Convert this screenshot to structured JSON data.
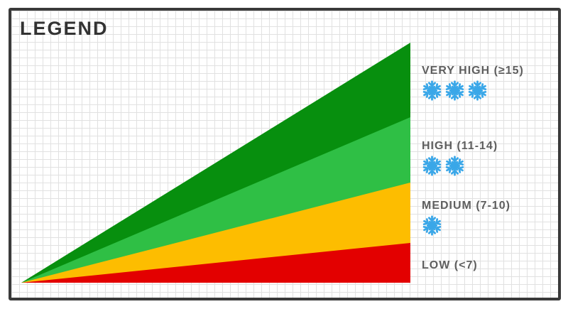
{
  "legend": {
    "title": "LEGEND",
    "levels": [
      {
        "label": "VERY HIGH (≥15)",
        "snowflakes": 3,
        "band_color": "#078f0e"
      },
      {
        "label": "HIGH (11-14)",
        "snowflakes": 2,
        "band_color": "#2fbf45"
      },
      {
        "label": "MEDIUM (7-10)",
        "snowflakes": 1,
        "band_color": "#fdbd00"
      },
      {
        "label": "LOW (<7)",
        "snowflakes": 0,
        "band_color": "#e30000"
      }
    ],
    "icon": "snowflake-icon",
    "snowflake_color": "#3aa7e8",
    "frame_color": "#3a3a3a",
    "grid_color": "#e1e1e1"
  }
}
